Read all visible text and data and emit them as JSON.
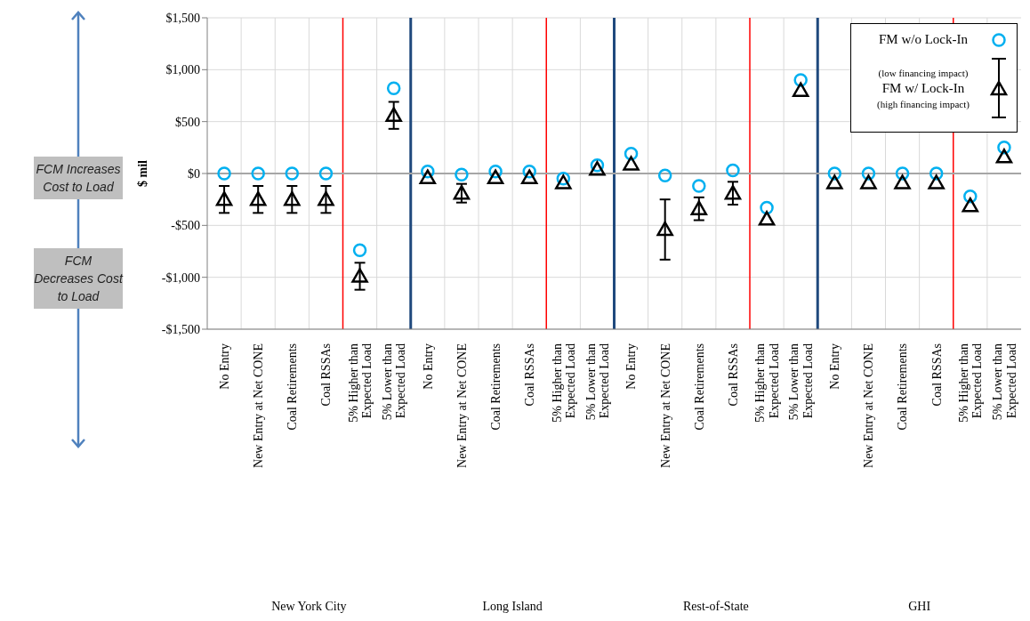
{
  "chart_data": {
    "type": "scatter",
    "categories": [
      "No Entry",
      "New Entry at Net CONE",
      "Coal Retirements",
      "Coal RSSAs",
      "5% Higher than Expected Load",
      "5% Lower than Expected Load",
      "No Entry",
      "New Entry at Net CONE",
      "Coal Retirements",
      "Coal RSSAs",
      "5% Higher than Expected Load",
      "5% Lower than Expected Load",
      "No Entry",
      "New Entry at Net CONE",
      "Coal Retirements",
      "Coal RSSAs",
      "5% Higher than Expected Load",
      "5% Lower than Expected Load",
      "No Entry",
      "New Entry at Net CONE",
      "Coal Retirements",
      "Coal RSSAs",
      "5% Higher than Expected Load",
      "5% Lower than Expected Load"
    ],
    "series": [
      {
        "name": "FM w/o Lock-In",
        "color": "#00b0f0",
        "marker": "circle",
        "values": [
          0,
          0,
          0,
          0,
          -740,
          820,
          20,
          -10,
          20,
          20,
          -50,
          80,
          190,
          -20,
          -120,
          30,
          -330,
          900,
          0,
          0,
          0,
          0,
          -220,
          250
        ]
      },
      {
        "name": "FM w/ Lock-In",
        "color": "#000000",
        "marker": "triangle",
        "values": [
          -250,
          -250,
          -250,
          -250,
          -990,
          560,
          -40,
          -190,
          -40,
          -40,
          -90,
          40,
          90,
          -540,
          -340,
          -190,
          -440,
          800,
          -90,
          -90,
          -90,
          -90,
          -310,
          160
        ],
        "errors": [
          130,
          130,
          130,
          130,
          130,
          130,
          null,
          90,
          null,
          null,
          null,
          null,
          null,
          290,
          110,
          110,
          null,
          null,
          null,
          null,
          null,
          null,
          null,
          null
        ]
      }
    ],
    "ylabel": "$ mil",
    "ylim": [
      -1500,
      1500
    ],
    "yticks": [
      {
        "value": -1500,
        "label": "-$1,500"
      },
      {
        "value": -1000,
        "label": "-$1,000"
      },
      {
        "value": -500,
        "label": "-$500"
      },
      {
        "value": 0,
        "label": "$0"
      },
      {
        "value": 500,
        "label": "$500"
      },
      {
        "value": 1000,
        "label": "$1,000"
      },
      {
        "value": 1500,
        "label": "$1,500"
      }
    ],
    "ref_lines": [
      {
        "axis": "y",
        "value": 0,
        "color": "#a6a6a6"
      }
    ],
    "annotations": [
      "FCM Increases Cost to Load",
      "FCM Decreases Cost to Load",
      "(low financing impact)",
      "(high financing impact)",
      "New York City",
      "Long Island",
      "Rest-of-State",
      "GHI"
    ],
    "grid": true,
    "legend": "top right"
  }
}
